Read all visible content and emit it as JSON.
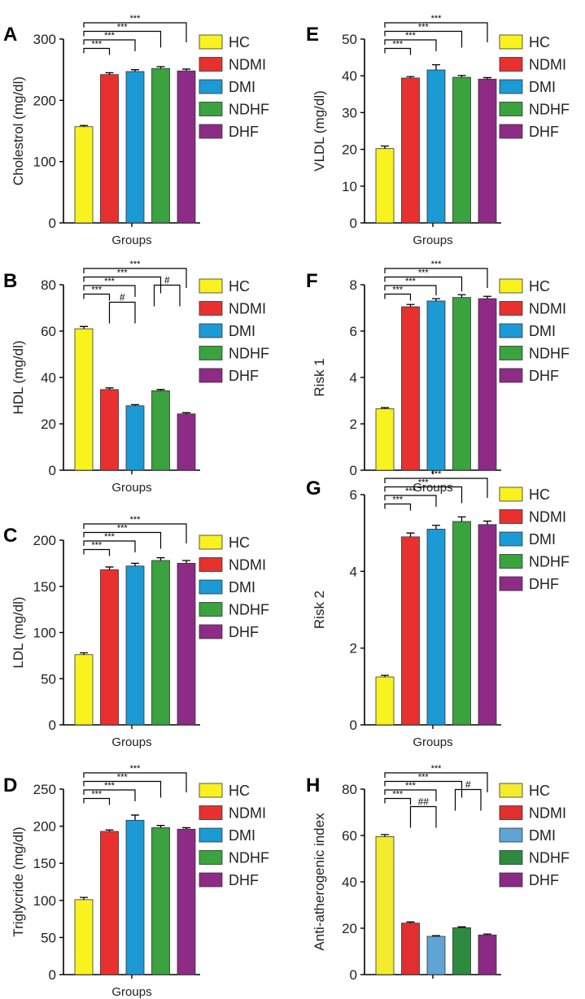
{
  "legend": {
    "labels": [
      "HC",
      "NDMI",
      "DMI",
      "NDHF",
      "DHF"
    ],
    "colors": [
      "#f8f21e",
      "#e8312f",
      "#1b9ad6",
      "#3aa23e",
      "#8e2b86"
    ]
  },
  "chart_data": [
    {
      "panel": "A",
      "type": "bar",
      "title": "",
      "categories": [
        "HC",
        "NDMI",
        "DMI",
        "NDHF",
        "DHF"
      ],
      "values": [
        157,
        242,
        247,
        252,
        248
      ],
      "errors": [
        2,
        3,
        3,
        3,
        3
      ],
      "xlabel": "Groups",
      "ylabel": "Cholestrol (mg/dl)",
      "ylim": [
        0,
        300
      ],
      "yticks": [
        0,
        100,
        200,
        300
      ],
      "significance": [
        {
          "label": "***",
          "to": 1
        },
        {
          "label": "***",
          "to": 2
        },
        {
          "label": "***",
          "to": 3
        },
        {
          "label": "***",
          "to": 4
        }
      ]
    },
    {
      "panel": "B",
      "type": "bar",
      "title": "",
      "categories": [
        "HC",
        "NDMI",
        "DMI",
        "NDHF",
        "DHF"
      ],
      "values": [
        61,
        34.8,
        27.8,
        34.3,
        24.3
      ],
      "errors": [
        1,
        0.7,
        0.5,
        0.5,
        0.5
      ],
      "xlabel": "Groups",
      "ylabel": "HDL (mg/dl)",
      "ylim": [
        0,
        80
      ],
      "yticks": [
        0,
        20,
        40,
        60,
        80
      ],
      "significance": [
        {
          "label": "***",
          "to": 1
        },
        {
          "label": "***",
          "to": 2
        },
        {
          "label": "***",
          "to": 3
        },
        {
          "label": "***",
          "to": 4
        }
      ],
      "secondary": [
        {
          "label": "#",
          "from": 1,
          "to": 2
        },
        {
          "label": "#",
          "from": 3,
          "to": 4
        }
      ]
    },
    {
      "panel": "C",
      "type": "bar",
      "title": "",
      "categories": [
        "HC",
        "NDMI",
        "DMI",
        "NDHF",
        "DHF"
      ],
      "values": [
        76,
        168,
        172,
        178,
        175
      ],
      "errors": [
        2,
        3,
        3,
        3,
        3
      ],
      "xlabel": "Groups",
      "ylabel": "LDL (mg/dl)",
      "ylim": [
        0,
        200
      ],
      "yticks": [
        0,
        50,
        100,
        150,
        200
      ],
      "significance": [
        {
          "label": "***",
          "to": 1
        },
        {
          "label": "***",
          "to": 2
        },
        {
          "label": "***",
          "to": 3
        },
        {
          "label": "***",
          "to": 4
        }
      ]
    },
    {
      "panel": "D",
      "type": "bar",
      "title": "",
      "categories": [
        "HC",
        "NDMI",
        "DMI",
        "NDHF",
        "DHF"
      ],
      "values": [
        101,
        193,
        208,
        198,
        196
      ],
      "errors": [
        3,
        2,
        7,
        3,
        2
      ],
      "xlabel": "Groups",
      "ylabel": "Triglycride (mg/dl)",
      "ylim": [
        0,
        250
      ],
      "yticks": [
        0,
        50,
        100,
        150,
        200,
        250
      ],
      "significance": [
        {
          "label": "***",
          "to": 1
        },
        {
          "label": "***",
          "to": 2
        },
        {
          "label": "***",
          "to": 3
        },
        {
          "label": "***",
          "to": 4
        }
      ]
    },
    {
      "panel": "E",
      "type": "bar",
      "title": "",
      "categories": [
        "HC",
        "NDMI",
        "DMI",
        "NDHF",
        "DHF"
      ],
      "values": [
        20.2,
        39.4,
        41.6,
        39.6,
        39.1
      ],
      "errors": [
        0.7,
        0.4,
        1.4,
        0.5,
        0.4
      ],
      "xlabel": "Groups",
      "ylabel": "VLDL (mg/dl)",
      "ylim": [
        0,
        50
      ],
      "yticks": [
        0,
        10,
        20,
        30,
        40,
        50
      ],
      "significance": [
        {
          "label": "***",
          "to": 1
        },
        {
          "label": "***",
          "to": 2
        },
        {
          "label": "***",
          "to": 3
        },
        {
          "label": "***",
          "to": 4
        }
      ]
    },
    {
      "panel": "F",
      "type": "bar",
      "title": "",
      "categories": [
        "HC",
        "NDMI",
        "DMI",
        "NDHF",
        "DHF"
      ],
      "values": [
        2.65,
        7.05,
        7.3,
        7.45,
        7.4
      ],
      "errors": [
        0.05,
        0.1,
        0.1,
        0.12,
        0.1
      ],
      "xlabel": "Groups",
      "ylabel": "Risk 1",
      "ylim": [
        0,
        8
      ],
      "yticks": [
        0,
        2,
        4,
        6,
        8
      ],
      "significance": [
        {
          "label": "***",
          "to": 1
        },
        {
          "label": "***",
          "to": 2
        },
        {
          "label": "***",
          "to": 3
        },
        {
          "label": "***",
          "to": 4
        }
      ]
    },
    {
      "panel": "G",
      "type": "bar",
      "title": "",
      "categories": [
        "HC",
        "NDMI",
        "DMI",
        "NDHF",
        "DHF"
      ],
      "values": [
        1.25,
        4.9,
        5.1,
        5.3,
        5.22
      ],
      "errors": [
        0.04,
        0.1,
        0.1,
        0.12,
        0.09
      ],
      "xlabel": "Groups",
      "ylabel": "Risk 2",
      "ylim": [
        0,
        6
      ],
      "yticks": [
        0,
        2,
        4,
        6
      ],
      "significance": [
        {
          "label": "***",
          "to": 1
        },
        {
          "label": "***",
          "to": 2
        },
        {
          "label": "***",
          "to": 3
        },
        {
          "label": "***",
          "to": 4
        }
      ]
    },
    {
      "panel": "H",
      "type": "bar",
      "title": "",
      "categories": [
        "HC",
        "NDMI",
        "DMI",
        "NDHF",
        "DHF"
      ],
      "values": [
        59.5,
        22.2,
        16.5,
        20.2,
        17.1
      ],
      "errors": [
        0.9,
        0.5,
        0.3,
        0.4,
        0.4
      ],
      "xlabel": "",
      "ylabel": "Anti-atherogenic index",
      "ylim": [
        0,
        80
      ],
      "yticks": [
        0,
        20,
        40,
        60,
        80
      ],
      "colors": [
        "#f2ec2c",
        "#e02f2e",
        "#5ea5d6",
        "#2e8a3e",
        "#8b2a86"
      ],
      "significance": [
        {
          "label": "***",
          "to": 1
        },
        {
          "label": "***",
          "to": 2
        },
        {
          "label": "***",
          "to": 3
        },
        {
          "label": "***",
          "to": 4
        }
      ],
      "secondary": [
        {
          "label": "##",
          "from": 1,
          "to": 2
        },
        {
          "label": "#",
          "from": 3,
          "to": 4
        }
      ]
    }
  ]
}
